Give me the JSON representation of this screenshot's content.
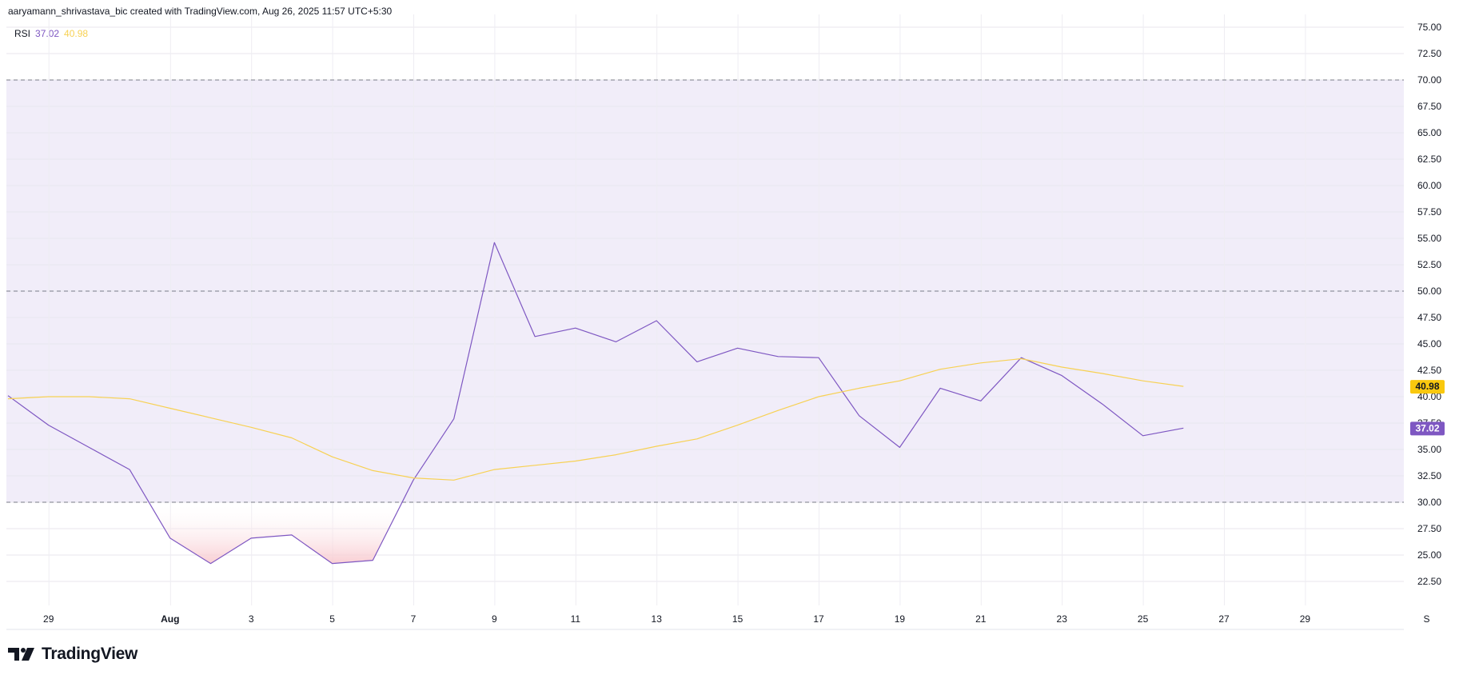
{
  "header": {
    "attribution": "aaryamann_shrivastava_bic created with TradingView.com, Aug 26, 2025 11:57 UTC+5:30"
  },
  "legend": {
    "label": "RSI",
    "rsi_value": "37.02",
    "ma_value": "40.98"
  },
  "brand": {
    "name": "TradingView",
    "icon": "tradingview-logo-icon"
  },
  "colors": {
    "rsi": "#7E57C2",
    "ma": "#F7D154",
    "band": "#F1EDF9",
    "oversold_fill": "#F8C9CF",
    "axis_text": "#131722"
  },
  "chart_data": {
    "type": "line",
    "title": "",
    "xlabel": "",
    "ylabel": "",
    "ylim": [
      20.0,
      75.0
    ],
    "y_ticks": [
      "22.50",
      "25.00",
      "27.50",
      "30.00",
      "32.50",
      "35.00",
      "37.50",
      "40.00",
      "42.50",
      "45.00",
      "47.50",
      "50.00",
      "52.50",
      "55.00",
      "57.50",
      "60.00",
      "62.50",
      "65.00",
      "67.50",
      "70.00",
      "72.50",
      "75.00"
    ],
    "levels": {
      "upper": 70,
      "middle": 50,
      "lower": 30
    },
    "x_tick_labels": [
      "29",
      "Aug",
      "3",
      "5",
      "7",
      "9",
      "11",
      "13",
      "15",
      "17",
      "19",
      "21",
      "23",
      "25",
      "27",
      "29",
      "S"
    ],
    "x_dates": [
      "Jul 28",
      "Jul 29",
      "Jul 30",
      "Jul 31",
      "Aug 1",
      "Aug 2",
      "Aug 3",
      "Aug 4",
      "Aug 5",
      "Aug 6",
      "Aug 7",
      "Aug 8",
      "Aug 9",
      "Aug 10",
      "Aug 11",
      "Aug 12",
      "Aug 13",
      "Aug 14",
      "Aug 15",
      "Aug 16",
      "Aug 17",
      "Aug 18",
      "Aug 19",
      "Aug 20",
      "Aug 21",
      "Aug 22",
      "Aug 23",
      "Aug 24",
      "Aug 25",
      "Aug 26"
    ],
    "grid": true,
    "series": [
      {
        "name": "RSI",
        "values": [
          40.1,
          37.3,
          35.2,
          33.1,
          26.6,
          24.2,
          26.6,
          26.9,
          24.2,
          24.5,
          32.1,
          37.9,
          54.6,
          45.7,
          46.5,
          45.2,
          47.2,
          43.3,
          44.6,
          43.8,
          43.7,
          38.2,
          35.2,
          40.8,
          39.6,
          43.7,
          42.0,
          39.3,
          36.3,
          37.02
        ]
      },
      {
        "name": "RSI-based MA",
        "values": [
          39.8,
          40.0,
          40.0,
          39.8,
          38.9,
          38.0,
          37.1,
          36.1,
          34.3,
          33.0,
          32.3,
          32.1,
          33.1,
          33.5,
          33.9,
          34.5,
          35.3,
          36.0,
          37.3,
          38.7,
          40.0,
          40.8,
          41.5,
          42.6,
          43.2,
          43.6,
          42.8,
          42.2,
          41.5,
          40.98
        ]
      }
    ]
  }
}
